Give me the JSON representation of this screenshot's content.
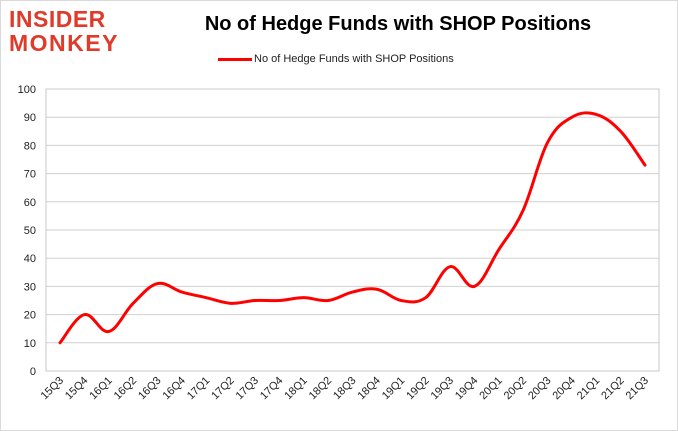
{
  "brand": {
    "line1": "INSIDER",
    "line2": "MONKEY"
  },
  "chart_data": {
    "type": "line",
    "title": "No of Hedge Funds with SHOP Positions",
    "xlabel": "",
    "ylabel": "",
    "categories": [
      "15Q3",
      "15Q4",
      "16Q1",
      "16Q2",
      "16Q3",
      "16Q4",
      "17Q1",
      "17Q2",
      "17Q3",
      "17Q4",
      "18Q1",
      "18Q2",
      "18Q3",
      "18Q4",
      "19Q1",
      "19Q2",
      "19Q3",
      "19Q4",
      "20Q1",
      "20Q2",
      "20Q3",
      "20Q4",
      "21Q1",
      "21Q2",
      "21Q3"
    ],
    "series": [
      {
        "name": "No of Hedge Funds with SHOP Positions",
        "color": "#ff0000",
        "values": [
          10,
          20,
          14,
          24,
          31,
          28,
          26,
          24,
          25,
          25,
          26,
          25,
          28,
          29,
          25,
          26,
          37,
          30,
          43,
          57,
          81,
          90,
          91,
          85,
          73
        ]
      }
    ],
    "ylim": [
      0,
      100
    ],
    "yticks": [
      0,
      10,
      20,
      30,
      40,
      50,
      60,
      70,
      80,
      90,
      100
    ],
    "grid": true,
    "legend_position": "top-center"
  }
}
